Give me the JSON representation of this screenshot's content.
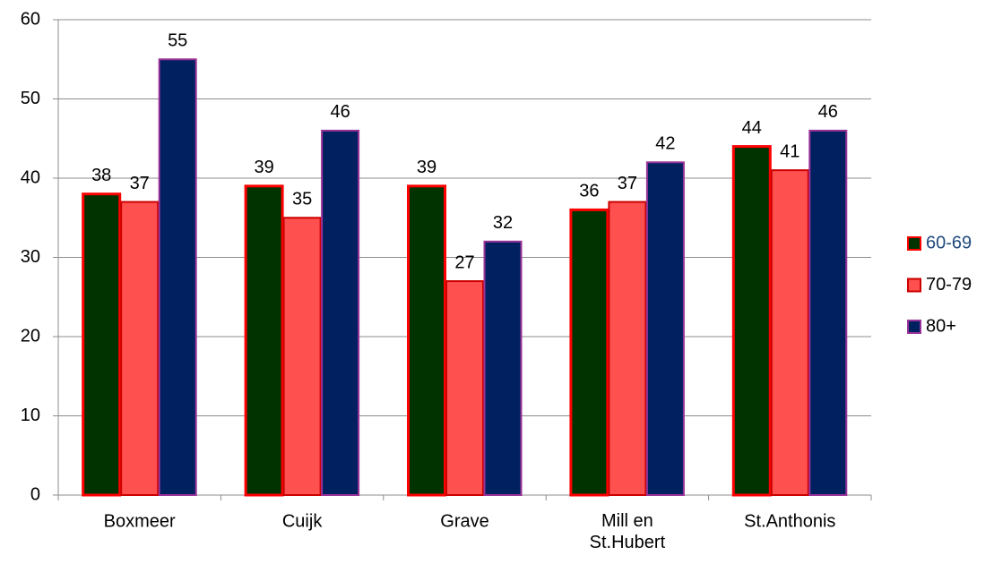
{
  "chart_data": {
    "type": "bar",
    "categories": [
      "Boxmeer",
      "Cuijk",
      "Grave",
      "Mill en\nSt.Hubert",
      "St.Anthonis"
    ],
    "series": [
      {
        "name": "60-69",
        "color": "#003300",
        "border": "#ff0000",
        "values": [
          38,
          39,
          39,
          36,
          44
        ]
      },
      {
        "name": "70-79",
        "color": "#ff5050",
        "border": "#cc0000",
        "values": [
          37,
          35,
          27,
          37,
          41
        ]
      },
      {
        "name": "80+",
        "color": "#002060",
        "border": "#993399",
        "values": [
          55,
          46,
          32,
          42,
          46
        ]
      }
    ],
    "ylim": [
      0,
      60
    ],
    "yticks": [
      0,
      10,
      20,
      30,
      40,
      50,
      60
    ],
    "grid": true,
    "legend": "right"
  }
}
